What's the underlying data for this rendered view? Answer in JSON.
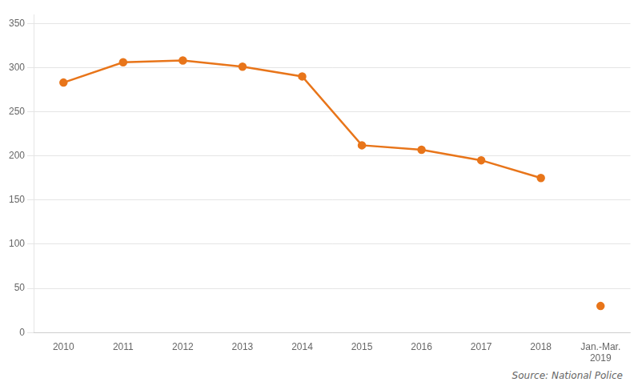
{
  "chart_data": {
    "type": "line",
    "categories": [
      "2010",
      "2011",
      "2012",
      "2013",
      "2014",
      "2015",
      "2016",
      "2017",
      "2018",
      "Jan.-Mar.\n2019"
    ],
    "series": [
      {
        "color": "#E8751A",
        "marker": "circle",
        "line_style": "solid",
        "values": [
          283,
          306,
          308,
          301,
          290,
          212,
          207,
          195,
          175,
          null
        ]
      },
      {
        "color": "#E8751A",
        "marker": "circle",
        "line_style": "none",
        "values": [
          null,
          null,
          null,
          null,
          null,
          null,
          null,
          null,
          null,
          30
        ]
      }
    ],
    "ylim": [
      0,
      360
    ],
    "yticks": [
      0,
      50,
      100,
      150,
      200,
      250,
      300,
      350
    ],
    "grid": "y",
    "annotation": "Source: National Police"
  }
}
